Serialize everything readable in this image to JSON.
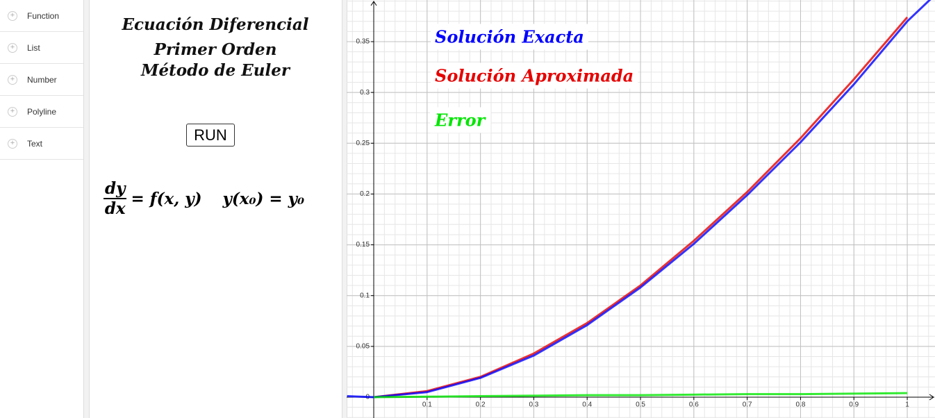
{
  "sidebar": {
    "items": [
      "Function",
      "List",
      "Number",
      "Polyline",
      "Text"
    ]
  },
  "panel": {
    "title_lines": [
      "Ecuación Diferencial",
      "Primer Orden",
      "Método de Euler"
    ],
    "button": "RUN",
    "equation": {
      "numerator": "dy",
      "denominator": "dx",
      "rhs": "= f(x, y)",
      "condition": "y(x₀) = y₀"
    }
  },
  "chart_data": {
    "type": "line",
    "x": [
      -0.05,
      0,
      0.1,
      0.2,
      0.3,
      0.4,
      0.5,
      0.6,
      0.7,
      0.8,
      0.9,
      1,
      1.05
    ],
    "series": [
      {
        "name": "Solución Exacta",
        "color": "#0000ff",
        "values": [
          0.001,
          0,
          0.005,
          0.019,
          0.041,
          0.071,
          0.108,
          0.151,
          0.199,
          0.251,
          0.308,
          0.37,
          0.395
        ]
      },
      {
        "name": "Solución Aproximada",
        "color": "#e60000",
        "values": [
          null,
          0,
          0.006,
          0.02,
          0.043,
          0.073,
          0.11,
          0.154,
          0.202,
          0.255,
          0.313,
          0.374,
          null
        ]
      },
      {
        "name": "Error",
        "color": "#00e600",
        "values": [
          null,
          0,
          0.0005,
          0.001,
          0.0015,
          0.002,
          0.002,
          0.0025,
          0.003,
          0.003,
          0.0035,
          0.004,
          null
        ]
      }
    ],
    "xlim": [
      -0.0508,
      1.052
    ],
    "ylim": [
      -0.0205,
      0.391
    ],
    "xticks": [
      0.1,
      0.2,
      0.3,
      0.4,
      0.5,
      0.6,
      0.7,
      0.8,
      0.9,
      1
    ],
    "yticks": [
      0,
      0.05,
      0.1,
      0.15,
      0.2,
      0.25,
      0.3,
      0.35
    ],
    "grid": true
  }
}
